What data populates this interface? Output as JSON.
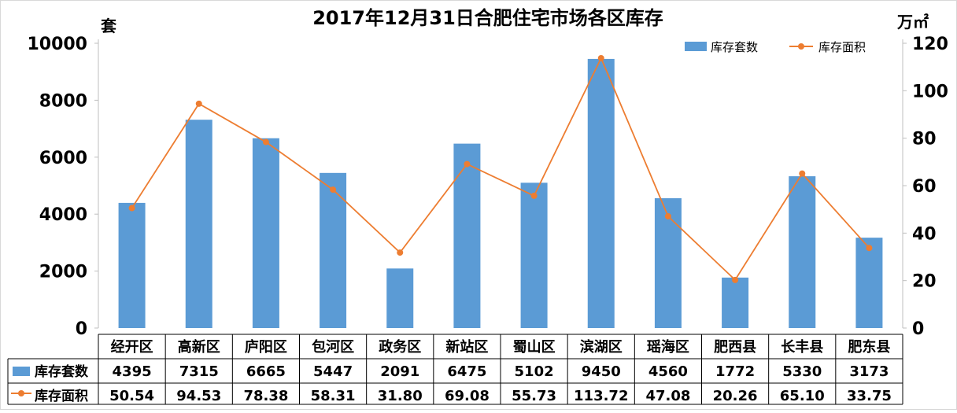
{
  "chart_data": {
    "type": "bar",
    "title": "2017年12月31日合肥住宅市场各区库存",
    "left_axis": {
      "unit_label": "套",
      "ylim": [
        0,
        10000
      ],
      "ticks": [
        0,
        2000,
        4000,
        6000,
        8000,
        10000
      ]
    },
    "right_axis": {
      "unit_label": "万㎡",
      "ylim": [
        0,
        120
      ],
      "ticks": [
        0,
        20,
        40,
        60,
        80,
        100,
        120
      ]
    },
    "categories": [
      "经开区",
      "高新区",
      "庐阳区",
      "包河区",
      "政务区",
      "新站区",
      "蜀山区",
      "滨湖区",
      "瑶海区",
      "肥西县",
      "长丰县",
      "肥东县"
    ],
    "series": [
      {
        "name": "库存套数",
        "type": "bar",
        "axis": "left",
        "color": "#5b9bd5",
        "values": [
          4395,
          7315,
          6665,
          5447,
          2091,
          6475,
          5102,
          9450,
          4560,
          1772,
          5330,
          3173
        ],
        "table_labels": [
          "4395",
          "7315",
          "6665",
          "5447",
          "2091",
          "6475",
          "5102",
          "9450",
          "4560",
          "1772",
          "5330",
          "3173"
        ]
      },
      {
        "name": "库存面积",
        "type": "line",
        "axis": "right",
        "color": "#ed7d31",
        "values": [
          50.54,
          94.53,
          78.38,
          58.31,
          31.8,
          69.08,
          55.73,
          113.72,
          47.08,
          20.26,
          65.1,
          33.75
        ],
        "table_labels": [
          "50.54",
          "94.53",
          "78.38",
          "58.31",
          "31.80",
          "69.08",
          "55.73",
          "113.72",
          "47.08",
          "20.26",
          "65.10",
          "33.75"
        ]
      }
    ],
    "legend_position": "top-right",
    "data_table": true,
    "grid": false
  }
}
